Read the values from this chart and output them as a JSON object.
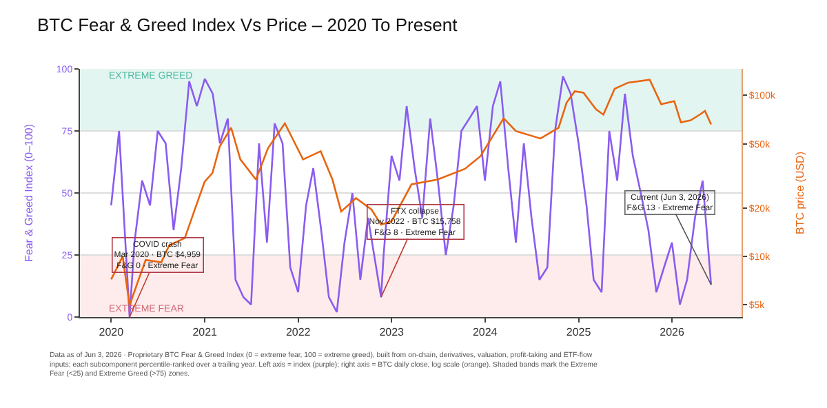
{
  "chart_data": {
    "type": "line",
    "title": "BTC Fear & Greed Index Vs Price – 2020 To Present",
    "ylabel": "Fear & Greed Index (0–100)",
    "y2label": "BTC price (USD)",
    "xlim": [
      "2019-09-01",
      "2026-09-30"
    ],
    "xticks": [
      {
        "value": "2020-01-01",
        "label": "2020"
      },
      {
        "value": "2021-01-01",
        "label": "2021"
      },
      {
        "value": "2022-01-01",
        "label": "2022"
      },
      {
        "value": "2023-01-01",
        "label": "2023"
      },
      {
        "value": "2024-01-01",
        "label": "2024"
      },
      {
        "value": "2025-01-01",
        "label": "2025"
      },
      {
        "value": "2026-01-01",
        "label": "2026"
      }
    ],
    "ylim": [
      0,
      100
    ],
    "yticks": [
      0,
      25,
      50,
      75,
      100
    ],
    "y2lim": [
      4200,
      146000
    ],
    "y2ticks": [
      {
        "value": 5000,
        "label": "$5k"
      },
      {
        "value": 10000,
        "label": "$10k"
      },
      {
        "value": 20000,
        "label": "$20k"
      },
      {
        "value": 50000,
        "label": "$50k"
      },
      {
        "value": 100000,
        "label": "$100k"
      }
    ],
    "log": "y2",
    "grid": "y",
    "marker": "none",
    "line_style": "solid",
    "bands": [
      {
        "axis": "y",
        "from": 75,
        "to": 100,
        "label": "EXTREME GREED",
        "color": "#e3f5f1"
      },
      {
        "axis": "y",
        "from": 0,
        "to": 25,
        "label": "EXTREME FEAR",
        "color": "#fdeceb"
      }
    ],
    "series": [
      {
        "color": "#8a5cf0",
        "x": [
          "2020-01-01",
          "2020-02-01",
          "2020-03-13",
          "2020-04-01",
          "2020-05-01",
          "2020-06-01",
          "2020-07-01",
          "2020-08-01",
          "2020-09-01",
          "2020-10-01",
          "2020-11-01",
          "2020-12-01",
          "2021-01-01",
          "2021-02-01",
          "2021-03-01",
          "2021-04-01",
          "2021-05-01",
          "2021-06-01",
          "2021-07-01",
          "2021-08-01",
          "2021-09-01",
          "2021-10-01",
          "2021-11-01",
          "2021-12-01",
          "2022-01-01",
          "2022-02-01",
          "2022-03-01",
          "2022-04-01",
          "2022-05-01",
          "2022-06-01",
          "2022-07-01",
          "2022-08-01",
          "2022-09-01",
          "2022-10-01",
          "2022-11-21",
          "2022-12-01",
          "2023-01-01",
          "2023-02-01",
          "2023-03-01",
          "2023-04-01",
          "2023-05-01",
          "2023-06-01",
          "2023-07-01",
          "2023-08-01",
          "2023-09-01",
          "2023-10-01",
          "2023-11-01",
          "2023-12-01",
          "2024-01-01",
          "2024-02-01",
          "2024-03-01",
          "2024-04-01",
          "2024-05-01",
          "2024-06-01",
          "2024-07-01",
          "2024-08-01",
          "2024-09-01",
          "2024-10-01",
          "2024-11-01",
          "2024-12-01",
          "2025-01-01",
          "2025-02-01",
          "2025-03-01",
          "2025-04-01",
          "2025-05-01",
          "2025-06-01",
          "2025-07-01",
          "2025-08-01",
          "2025-09-01",
          "2025-10-01",
          "2025-11-01",
          "2025-12-01",
          "2026-01-01",
          "2026-02-01",
          "2026-03-01",
          "2026-04-01",
          "2026-05-01",
          "2026-06-03"
        ],
        "values": [
          45,
          75,
          0,
          30,
          55,
          45,
          75,
          70,
          35,
          60,
          95,
          85,
          96,
          90,
          70,
          80,
          15,
          8,
          5,
          70,
          30,
          78,
          70,
          20,
          10,
          45,
          60,
          35,
          8,
          2,
          30,
          50,
          15,
          40,
          8,
          25,
          65,
          55,
          85,
          60,
          40,
          80,
          55,
          25,
          45,
          75,
          80,
          85,
          55,
          85,
          95,
          60,
          30,
          70,
          40,
          15,
          20,
          75,
          97,
          90,
          70,
          45,
          15,
          10,
          75,
          55,
          90,
          65,
          50,
          35,
          10,
          20,
          30,
          5,
          15,
          40,
          55,
          13
        ]
      },
      {
        "color": "#e8650f",
        "axis": "y2",
        "x": [
          "2020-01-01",
          "2020-02-15",
          "2020-03-13",
          "2020-04-15",
          "2020-05-15",
          "2020-07-15",
          "2020-08-15",
          "2020-10-15",
          "2020-11-15",
          "2020-12-31",
          "2021-01-31",
          "2021-02-28",
          "2021-04-14",
          "2021-05-20",
          "2021-07-20",
          "2021-09-05",
          "2021-11-10",
          "2022-01-20",
          "2022-03-30",
          "2022-05-15",
          "2022-06-18",
          "2022-08-15",
          "2022-10-15",
          "2022-11-21",
          "2023-01-01",
          "2023-03-20",
          "2023-06-30",
          "2023-10-15",
          "2023-12-15",
          "2024-03-14",
          "2024-05-01",
          "2024-08-05",
          "2024-10-15",
          "2024-11-15",
          "2024-12-17",
          "2025-01-20",
          "2025-03-10",
          "2025-04-08",
          "2025-05-22",
          "2025-07-14",
          "2025-10-06",
          "2025-11-20",
          "2026-01-10",
          "2026-02-05",
          "2026-03-15",
          "2026-04-20",
          "2026-05-10",
          "2026-06-03"
        ],
        "values": [
          7200,
          10000,
          4959,
          7000,
          9500,
          9200,
          11700,
          13000,
          18000,
          29000,
          33000,
          48000,
          63000,
          40000,
          30000,
          47000,
          67000,
          40000,
          45000,
          30000,
          19000,
          23000,
          19500,
          15758,
          16500,
          28000,
          30000,
          35000,
          42000,
          72000,
          60000,
          54000,
          63000,
          90000,
          106000,
          104000,
          82000,
          76000,
          110000,
          120000,
          125000,
          88000,
          92000,
          68000,
          70000,
          76000,
          80000,
          66000
        ]
      }
    ],
    "annotations": [
      {
        "text": "COVID crash\nMar 2020 · BTC $4,959\nF&G 0 · Extreme Fear",
        "x": "2020-03-13",
        "y": 0
      },
      {
        "text": "FTX collapse\nNov 2022 · BTC $15,758\nF&G 8 · Extreme Fear",
        "x": "2022-11-21",
        "y": 8
      },
      {
        "text": "Current (Jun 3, 2026)\nF&G 13 · Extreme Fear",
        "x": "2026-06-03",
        "y": 13
      },
      "Data as of Jun 3, 2026 · Proprietary BTC Fear & Greed Index (0 = extreme fear, 100 = extreme greed), built from on-chain, derivatives, valuation, profit-taking and ETF-flow\ninputs; each subcomponent percentile-ranked over a trailing year. Left axis = index (purple); right axis = BTC daily close, log scale (orange). Shaded bands mark the Extreme\nFear (<25) and Extreme Greed (>75) zones."
    ]
  }
}
